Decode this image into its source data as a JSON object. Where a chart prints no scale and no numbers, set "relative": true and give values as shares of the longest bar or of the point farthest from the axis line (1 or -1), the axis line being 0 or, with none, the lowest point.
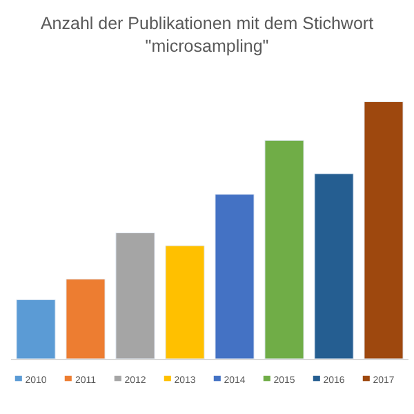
{
  "chart_data": {
    "type": "bar",
    "title": "Anzahl der Publikationen mit dem Stichwort \"microsampling\"",
    "relative": true,
    "categories": [
      "2010",
      "2011",
      "2012",
      "2013",
      "2014",
      "2015",
      "2016",
      "2017"
    ],
    "series": [
      {
        "values": [
          0.23,
          0.31,
          0.49,
          0.44,
          0.64,
          0.85,
          0.72,
          1
        ],
        "colors": [
          "#5b9bd5",
          "#ed7d31",
          "#a5a5a5",
          "#ffc000",
          "#4472c4",
          "#70ad47",
          "#255e91",
          "#9e480e"
        ]
      }
    ]
  }
}
